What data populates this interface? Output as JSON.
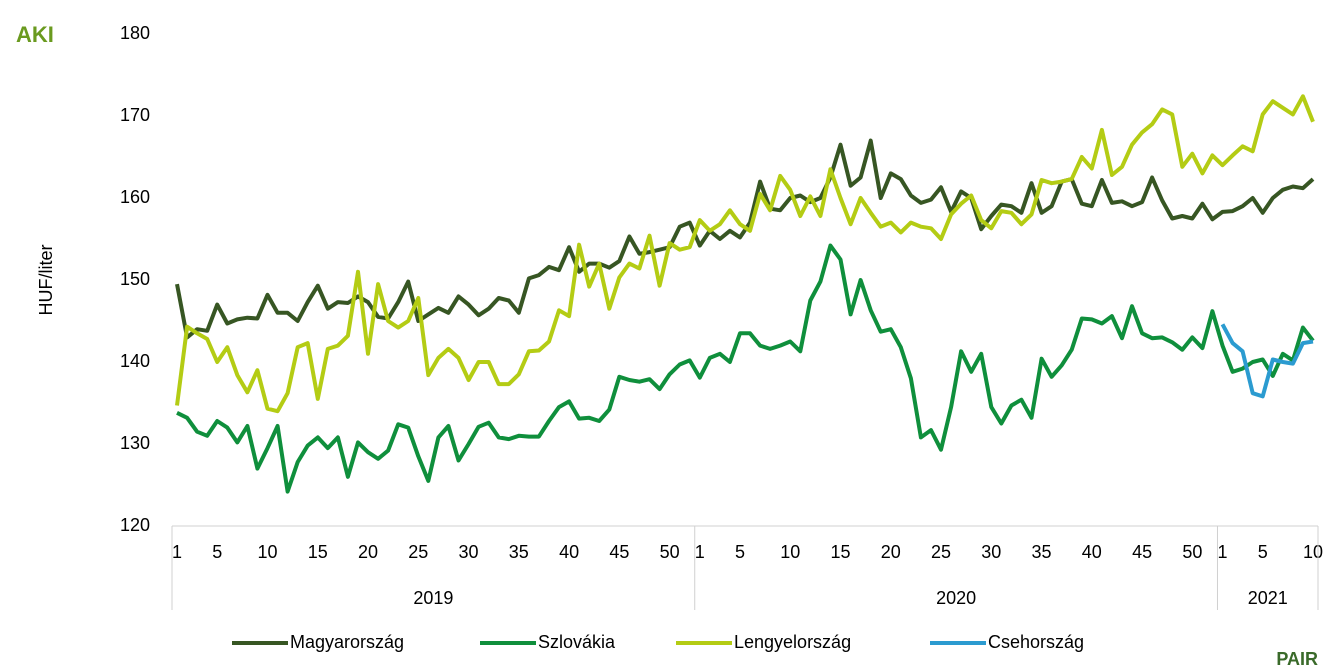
{
  "chart_data": {
    "type": "line",
    "y_label": "HUF/liter",
    "logos": [
      "AKI",
      "PAIR"
    ],
    "ylim": [
      120,
      180
    ],
    "yticks": [
      120,
      130,
      140,
      150,
      160,
      170,
      180
    ],
    "grid": false,
    "legend": "bottom",
    "x_groups": [
      {
        "label": "2019",
        "weeks": 52
      },
      {
        "label": "2020",
        "weeks": 52
      },
      {
        "label": "2021",
        "weeks": 10
      }
    ],
    "categories": [
      "1",
      null,
      null,
      null,
      "5",
      null,
      null,
      null,
      null,
      "10",
      null,
      null,
      null,
      null,
      "15",
      null,
      null,
      null,
      null,
      "20",
      null,
      null,
      null,
      null,
      "25",
      null,
      null,
      null,
      null,
      "30",
      null,
      null,
      null,
      null,
      "35",
      null,
      null,
      null,
      null,
      "40",
      null,
      null,
      null,
      null,
      "45",
      null,
      null,
      null,
      null,
      "50",
      null,
      null,
      "1",
      null,
      null,
      null,
      "5",
      null,
      null,
      null,
      null,
      "10",
      null,
      null,
      null,
      null,
      "15",
      null,
      null,
      null,
      null,
      "20",
      null,
      null,
      null,
      null,
      "25",
      null,
      null,
      null,
      null,
      "30",
      null,
      null,
      null,
      null,
      "35",
      null,
      null,
      null,
      null,
      "40",
      null,
      null,
      null,
      null,
      "45",
      null,
      null,
      null,
      null,
      "50",
      null,
      null,
      "1",
      null,
      null,
      null,
      "5",
      null,
      null,
      null,
      null,
      "10"
    ],
    "series": [
      {
        "name": "Magyarország",
        "color": "#375623",
        "values": [
          149.5,
          143,
          144,
          143.8,
          147,
          144.7,
          145.2,
          145.4,
          145.3,
          148.2,
          146,
          146,
          145,
          147.3,
          149.3,
          146.5,
          147.3,
          147.2,
          148,
          147.3,
          145.5,
          145.3,
          147.3,
          149.8,
          145,
          145.8,
          146.6,
          146,
          148,
          147,
          145.7,
          146.5,
          147.8,
          147.5,
          146,
          150.2,
          150.6,
          151.6,
          151.2,
          154,
          151,
          152,
          152,
          151.5,
          152.3,
          155.3,
          153.2,
          153.4,
          153.7,
          154,
          156.5,
          157,
          154.2,
          156,
          155,
          156,
          155.2,
          157,
          162,
          158.7,
          158.5,
          160,
          160.3,
          159.5,
          160,
          162.5,
          166.5,
          161.5,
          162.5,
          167,
          160,
          163,
          162.3,
          160.3,
          159.4,
          159.8,
          161.3,
          158.3,
          160.8,
          160,
          156.2,
          157.8,
          159.2,
          159,
          158.2,
          161.8,
          158.2,
          159,
          162,
          162.3,
          159.3,
          159,
          162.2,
          159.4,
          159.6,
          159,
          159.5,
          162.5,
          159.7,
          157.5,
          157.8,
          157.5,
          159.3,
          157.4,
          158.3,
          158.4,
          159,
          160,
          158.2,
          160,
          161,
          161.4,
          161.2,
          162.3
        ]
      },
      {
        "name": "Szlovákia",
        "color": "#0f8f3c",
        "values": [
          133.8,
          133.2,
          131.5,
          131,
          132.8,
          132,
          130.2,
          132.2,
          127,
          129.5,
          132.2,
          124.2,
          127.8,
          129.8,
          130.8,
          129.5,
          130.8,
          126,
          130.2,
          129,
          128.2,
          129.2,
          132.4,
          132,
          128.5,
          125.5,
          130.8,
          132.2,
          128,
          130,
          132.1,
          132.6,
          130.8,
          130.6,
          131,
          130.9,
          130.9,
          132.8,
          134.5,
          135.2,
          133.1,
          133.2,
          132.8,
          134.2,
          138.2,
          137.8,
          137.6,
          137.9,
          136.7,
          138.5,
          139.7,
          140.2,
          138.1,
          140.5,
          141,
          140,
          143.5,
          143.5,
          142,
          141.6,
          142,
          142.5,
          141.3,
          147.5,
          149.8,
          154.2,
          152.5,
          145.8,
          150,
          146.3,
          143.7,
          144,
          141.8,
          138,
          130.8,
          131.7,
          129.3,
          134.5,
          141.3,
          138.8,
          141,
          134.5,
          132.5,
          134.7,
          135.4,
          133.2,
          140.4,
          138.2,
          139.6,
          141.5,
          145.3,
          145.2,
          144.7,
          145.6,
          142.9,
          146.8,
          143.5,
          142.9,
          143,
          142.4,
          141.5,
          143,
          141.7,
          146.2,
          142,
          138.8,
          139.2,
          140,
          140.3,
          138.3,
          141,
          140.2,
          144.2,
          142.6
        ]
      },
      {
        "name": "Lengyelország",
        "color": "#b4cc14",
        "values": [
          134.7,
          144.3,
          143.5,
          142.8,
          140,
          141.8,
          138.4,
          136.3,
          139,
          134.3,
          134,
          136.2,
          141.8,
          142.3,
          135.5,
          141.6,
          142,
          143.2,
          151,
          141,
          149.5,
          145,
          144.2,
          145,
          147.8,
          138.4,
          140.5,
          141.6,
          140.5,
          137.8,
          140,
          140,
          137.3,
          137.3,
          138.5,
          141.3,
          141.4,
          142.5,
          146.3,
          145.6,
          154.3,
          149.2,
          152,
          146.5,
          150.3,
          152,
          151.4,
          155.4,
          149.3,
          154.5,
          153.7,
          154,
          157.3,
          156,
          156.8,
          158.5,
          156.8,
          156,
          160.5,
          158.5,
          162.7,
          161,
          157.8,
          160.2,
          157.8,
          163.5,
          160,
          156.8,
          160,
          158.2,
          156.5,
          157,
          155.8,
          157,
          156.5,
          156.3,
          155,
          158,
          159.3,
          160.3,
          157.3,
          156.3,
          158.4,
          158.2,
          156.8,
          158,
          162.2,
          161.8,
          162,
          162.3,
          165,
          163.6,
          168.3,
          162.8,
          163.8,
          166.5,
          168,
          169,
          170.8,
          170.2,
          163.8,
          165.4,
          163,
          165.2,
          164,
          165.2,
          166.3,
          165.7,
          170.2,
          171.8,
          171,
          170.2,
          172.4,
          169.3
        ]
      },
      {
        "name": "Csehország",
        "color": "#2b9bd0",
        "values": [
          null,
          null,
          null,
          null,
          null,
          null,
          null,
          null,
          null,
          null,
          null,
          null,
          null,
          null,
          null,
          null,
          null,
          null,
          null,
          null,
          null,
          null,
          null,
          null,
          null,
          null,
          null,
          null,
          null,
          null,
          null,
          null,
          null,
          null,
          null,
          null,
          null,
          null,
          null,
          null,
          null,
          null,
          null,
          null,
          null,
          null,
          null,
          null,
          null,
          null,
          null,
          null,
          null,
          null,
          null,
          null,
          null,
          null,
          null,
          null,
          null,
          null,
          null,
          null,
          null,
          null,
          null,
          null,
          null,
          null,
          null,
          null,
          null,
          null,
          null,
          null,
          null,
          null,
          null,
          null,
          null,
          null,
          null,
          null,
          null,
          null,
          null,
          null,
          null,
          null,
          null,
          null,
          null,
          null,
          null,
          null,
          null,
          null,
          null,
          null,
          null,
          null,
          null,
          null,
          144.6,
          142.3,
          141.3,
          136.2,
          135.8,
          140.3,
          140,
          139.8,
          142.3,
          142.5
        ]
      }
    ]
  }
}
